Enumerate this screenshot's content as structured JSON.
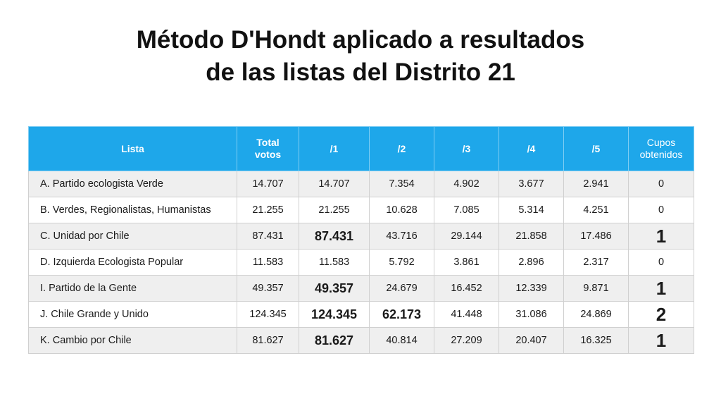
{
  "title": {
    "line1": "Método D'Hondt aplicado a resultados",
    "line2": "de las listas del Distrito 21"
  },
  "table": {
    "headers": {
      "lista": "Lista",
      "total_line1": "Total",
      "total_line2": "votos",
      "d1": "/1",
      "d2": "/2",
      "d3": "/3",
      "d4": "/4",
      "d5": "/5",
      "cupos_line1": "Cupos",
      "cupos_line2": "obtenidos"
    },
    "rows": [
      {
        "name": "A. Partido ecologista Verde",
        "total": "14.707",
        "d1": "14.707",
        "d2": "7.354",
        "d3": "4.902",
        "d4": "3.677",
        "d5": "2.941",
        "cupos": "0"
      },
      {
        "name": "B. Verdes, Regionalistas, Humanistas",
        "total": "21.255",
        "d1": "21.255",
        "d2": "10.628",
        "d3": "7.085",
        "d4": "5.314",
        "d5": "4.251",
        "cupos": "0"
      },
      {
        "name": "C. Unidad por Chile",
        "total": "87.431",
        "d1": "87.431",
        "d2": "43.716",
        "d3": "29.144",
        "d4": "21.858",
        "d5": "17.486",
        "cupos": "1"
      },
      {
        "name": "D. Izquierda Ecologista Popular",
        "total": "11.583",
        "d1": "11.583",
        "d2": "5.792",
        "d3": "3.861",
        "d4": "2.896",
        "d5": "2.317",
        "cupos": "0"
      },
      {
        "name": "I. Partido de la Gente",
        "total": "49.357",
        "d1": "49.357",
        "d2": "24.679",
        "d3": "16.452",
        "d4": "12.339",
        "d5": "9.871",
        "cupos": "1"
      },
      {
        "name": "J. Chile Grande y Unido",
        "total": "124.345",
        "d1": "124.345",
        "d2": "62.173",
        "d3": "41.448",
        "d4": "31.086",
        "d5": "24.869",
        "cupos": "2"
      },
      {
        "name": "K. Cambio por Chile",
        "total": "81.627",
        "d1": "81.627",
        "d2": "40.814",
        "d3": "27.209",
        "d4": "20.407",
        "d5": "16.325",
        "cupos": "1"
      }
    ]
  },
  "colors": {
    "header_bg": "#1ea7ea",
    "header_text": "#ffffff",
    "row_alt_bg": "#efefef"
  }
}
